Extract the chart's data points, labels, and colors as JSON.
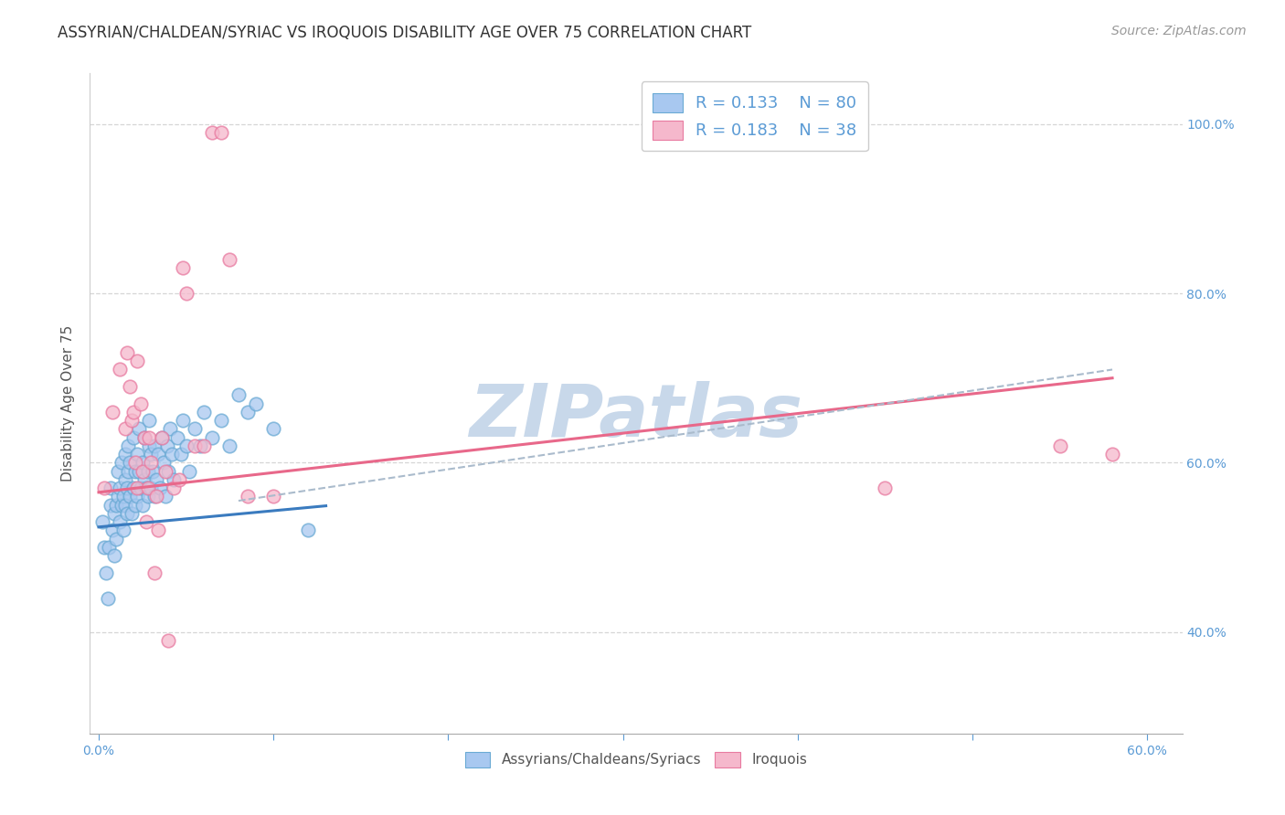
{
  "title": "ASSYRIAN/CHALDEAN/SYRIAC VS IROQUOIS DISABILITY AGE OVER 75 CORRELATION CHART",
  "source": "Source: ZipAtlas.com",
  "ylabel_label": "Disability Age Over 75",
  "xlim": [
    -0.005,
    0.62
  ],
  "ylim": [
    0.28,
    1.06
  ],
  "blue_R": 0.133,
  "blue_N": 80,
  "pink_R": 0.183,
  "pink_N": 38,
  "blue_color": "#a8c8f0",
  "pink_color": "#f5b8cc",
  "blue_edge_color": "#6aaad4",
  "pink_edge_color": "#e87aa0",
  "blue_line_color": "#3a7bbf",
  "pink_line_color": "#e8688a",
  "dashed_line_color": "#aabbcc",
  "watermark": "ZIPatlas",
  "watermark_color": "#c8d8ea",
  "legend_entries": [
    "Assyrians/Chaldeans/Syriacs",
    "Iroquois"
  ],
  "tick_color": "#5b9bd5",
  "axis_label_color": "#555555",
  "grid_color": "#cccccc",
  "background_color": "#ffffff",
  "title_fontsize": 12,
  "source_fontsize": 10,
  "blue_scatter_x": [
    0.002,
    0.003,
    0.004,
    0.005,
    0.006,
    0.007,
    0.007,
    0.008,
    0.009,
    0.009,
    0.01,
    0.01,
    0.011,
    0.011,
    0.012,
    0.012,
    0.013,
    0.013,
    0.014,
    0.014,
    0.015,
    0.015,
    0.015,
    0.016,
    0.016,
    0.017,
    0.017,
    0.018,
    0.018,
    0.019,
    0.02,
    0.02,
    0.021,
    0.021,
    0.022,
    0.022,
    0.023,
    0.023,
    0.024,
    0.025,
    0.025,
    0.026,
    0.026,
    0.027,
    0.028,
    0.028,
    0.029,
    0.029,
    0.03,
    0.03,
    0.031,
    0.032,
    0.032,
    0.033,
    0.034,
    0.035,
    0.036,
    0.037,
    0.038,
    0.039,
    0.04,
    0.041,
    0.042,
    0.043,
    0.045,
    0.047,
    0.048,
    0.05,
    0.052,
    0.055,
    0.058,
    0.06,
    0.065,
    0.07,
    0.075,
    0.08,
    0.085,
    0.09,
    0.1,
    0.12
  ],
  "blue_scatter_y": [
    0.53,
    0.5,
    0.47,
    0.44,
    0.5,
    0.55,
    0.57,
    0.52,
    0.54,
    0.49,
    0.51,
    0.55,
    0.56,
    0.59,
    0.53,
    0.57,
    0.55,
    0.6,
    0.52,
    0.56,
    0.58,
    0.61,
    0.55,
    0.54,
    0.57,
    0.59,
    0.62,
    0.56,
    0.6,
    0.54,
    0.57,
    0.63,
    0.55,
    0.59,
    0.56,
    0.61,
    0.59,
    0.64,
    0.57,
    0.6,
    0.55,
    0.63,
    0.58,
    0.57,
    0.59,
    0.56,
    0.62,
    0.65,
    0.57,
    0.61,
    0.59,
    0.56,
    0.62,
    0.58,
    0.61,
    0.57,
    0.63,
    0.6,
    0.56,
    0.62,
    0.59,
    0.64,
    0.61,
    0.58,
    0.63,
    0.61,
    0.65,
    0.62,
    0.59,
    0.64,
    0.62,
    0.66,
    0.63,
    0.65,
    0.62,
    0.68,
    0.66,
    0.67,
    0.64,
    0.52
  ],
  "pink_scatter_x": [
    0.003,
    0.008,
    0.012,
    0.015,
    0.016,
    0.018,
    0.019,
    0.02,
    0.021,
    0.022,
    0.022,
    0.024,
    0.025,
    0.026,
    0.027,
    0.028,
    0.029,
    0.03,
    0.032,
    0.033,
    0.034,
    0.036,
    0.038,
    0.04,
    0.043,
    0.046,
    0.048,
    0.05,
    0.055,
    0.06,
    0.065,
    0.07,
    0.075,
    0.085,
    0.1,
    0.45,
    0.55,
    0.58
  ],
  "pink_scatter_y": [
    0.57,
    0.66,
    0.71,
    0.64,
    0.73,
    0.69,
    0.65,
    0.66,
    0.6,
    0.57,
    0.72,
    0.67,
    0.59,
    0.63,
    0.53,
    0.57,
    0.63,
    0.6,
    0.47,
    0.56,
    0.52,
    0.63,
    0.59,
    0.39,
    0.57,
    0.58,
    0.83,
    0.8,
    0.62,
    0.62,
    0.99,
    0.99,
    0.84,
    0.56,
    0.56,
    0.57,
    0.62,
    0.61
  ],
  "blue_trend_x": [
    0.0,
    0.13
  ],
  "blue_trend_y": [
    0.524,
    0.549
  ],
  "pink_trend_x": [
    0.0,
    0.58
  ],
  "pink_trend_y": [
    0.565,
    0.7
  ],
  "dashed_trend_x": [
    0.08,
    0.58
  ],
  "dashed_trend_y": [
    0.555,
    0.71
  ]
}
